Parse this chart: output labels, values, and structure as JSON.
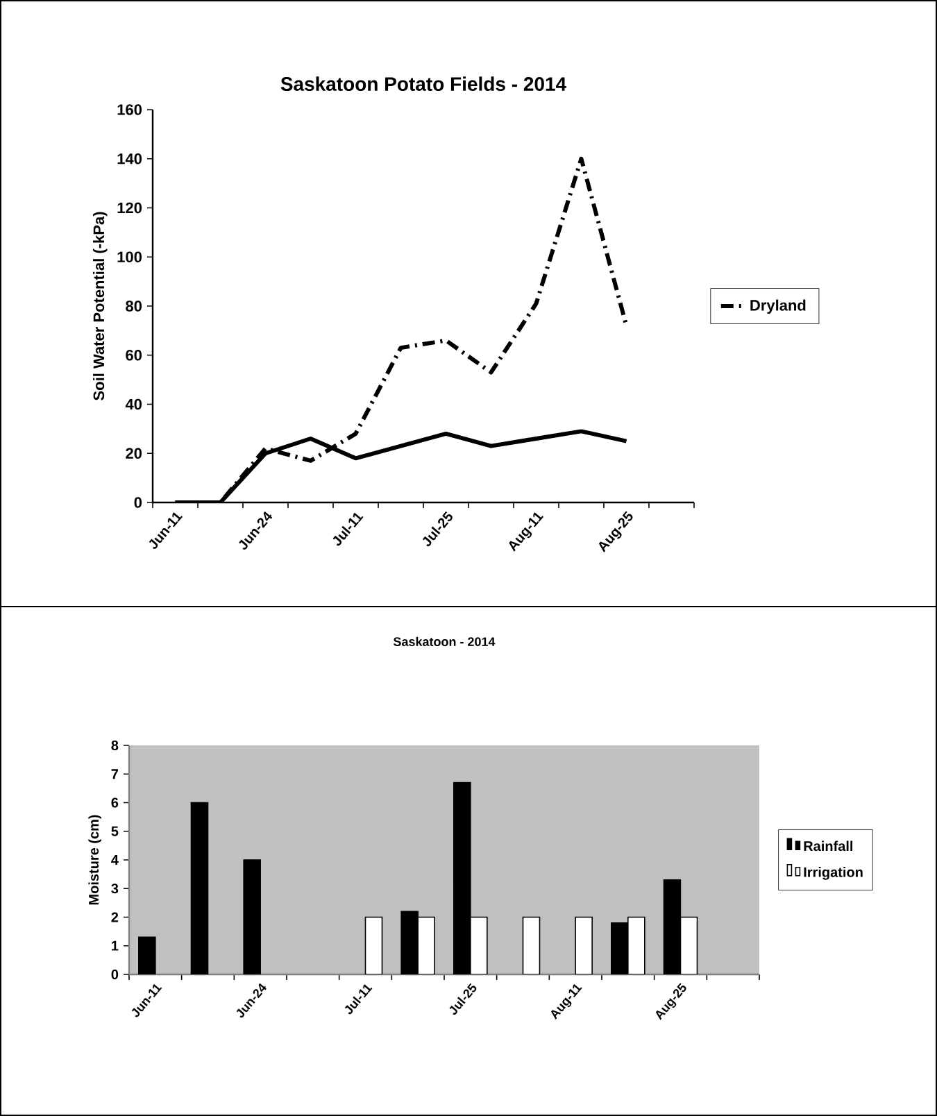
{
  "chart_data": [
    {
      "type": "line",
      "title": "Saskatoon Potato Fields - 2014",
      "ylabel": "Soil Water Potential (-kPa)",
      "categories": [
        "Jun-11",
        null,
        "Jun-24",
        null,
        "Jul-11",
        null,
        "Jul-25",
        null,
        "Aug-11",
        null,
        "Aug-25",
        null
      ],
      "ylim": [
        0,
        160
      ],
      "yticks": [
        0,
        20,
        40,
        60,
        80,
        100,
        120,
        140,
        160
      ],
      "legend": "right",
      "series": [
        {
          "color": "#000000",
          "line_style": "solid",
          "values": [
            0,
            0,
            20,
            26,
            18,
            23,
            28,
            23,
            26,
            29,
            25,
            null
          ]
        },
        {
          "name": "Dryland",
          "color": "#000000",
          "line_style": "dashed",
          "values": [
            0,
            0,
            22,
            17,
            28,
            63,
            66,
            53,
            81,
            140,
            72,
            null
          ]
        }
      ]
    },
    {
      "type": "bar",
      "title": "Saskatoon - 2014",
      "ylabel": "Moisture (cm)",
      "categories": [
        "Jun-11",
        null,
        "Jun-24",
        null,
        "Jul-11",
        null,
        "Jul-25",
        null,
        "Aug-11",
        null,
        "Aug-25",
        null
      ],
      "ylim": [
        0,
        8
      ],
      "yticks": [
        0,
        1,
        2,
        3,
        4,
        5,
        6,
        7,
        8
      ],
      "legend": "right",
      "series": [
        {
          "name": "Rainfall",
          "color": "#000000",
          "values": [
            1.3,
            6.0,
            4.0,
            null,
            null,
            2.2,
            6.7,
            null,
            null,
            1.8,
            3.3,
            null
          ]
        },
        {
          "name": "Irrigation",
          "color": "#ffffff",
          "values": [
            null,
            null,
            null,
            null,
            2,
            2,
            2,
            2,
            2,
            2,
            2,
            null
          ]
        }
      ]
    }
  ]
}
